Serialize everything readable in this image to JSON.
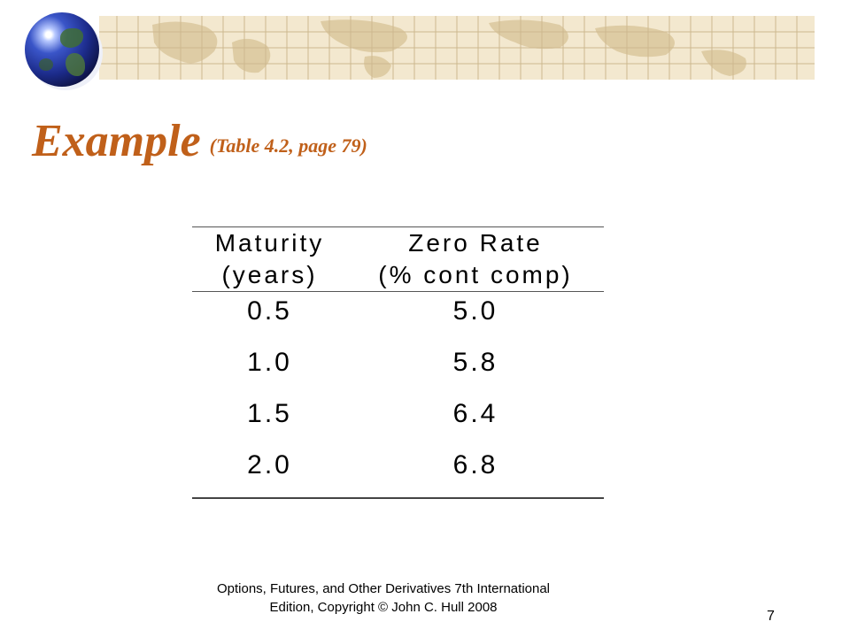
{
  "title": {
    "main": "Example",
    "sub": "(Table 4.2, page 79)"
  },
  "table": {
    "headers": [
      {
        "line1": "Maturity",
        "line2": "(years)"
      },
      {
        "line1": "Zero Rate",
        "line2": "(% cont comp)"
      }
    ],
    "rows": [
      [
        "0.5",
        "5.0"
      ],
      [
        "1.0",
        "5.8"
      ],
      [
        "1.5",
        "6.4"
      ],
      [
        "2.0",
        "6.8"
      ]
    ]
  },
  "footer": {
    "line1": "Options, Futures, and Other Derivatives 7th International",
    "line2": "Edition, Copyright © John C. Hull 2008"
  },
  "page_number": "7",
  "colors": {
    "title": "#c0601a",
    "banner": "#f3e8cf"
  },
  "icons": [
    "globe-icon"
  ]
}
